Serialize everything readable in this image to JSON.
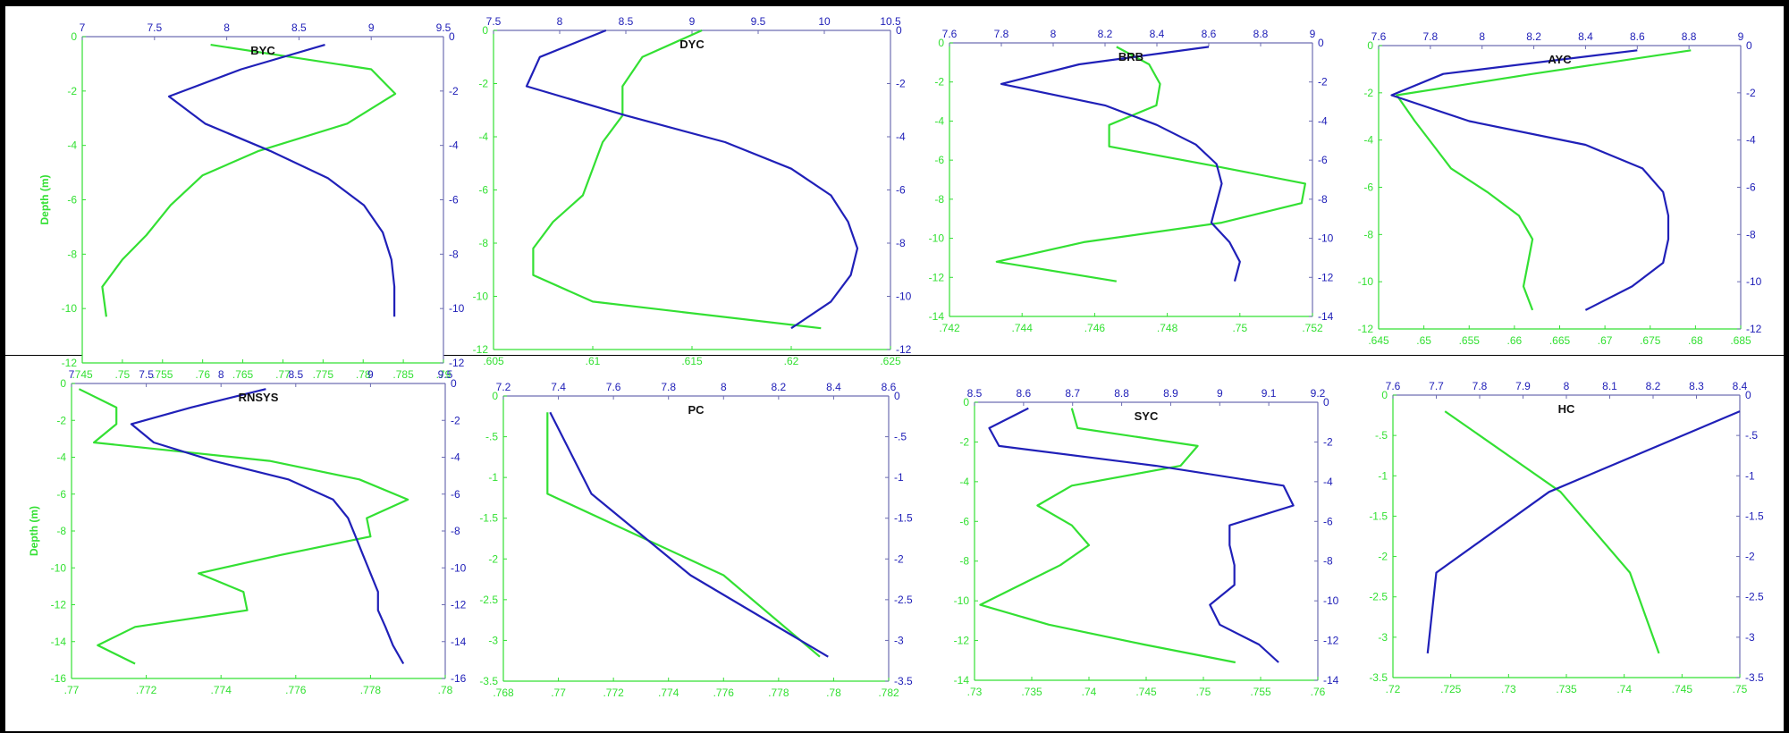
{
  "colors": {
    "green": "#33e033",
    "blue": "#2020b8",
    "axis_blue": "#6d6db2"
  },
  "chart_data": [
    {
      "type": "line",
      "title": "BYC",
      "ylabel": "Depth (m)",
      "ylim": [
        -12,
        0
      ],
      "yticks": [
        -12,
        -10,
        -8,
        -6,
        -4,
        -2,
        0
      ],
      "green_axis": {
        "lim": [
          0.745,
          0.79
        ],
        "ticks": [
          0.745,
          0.75,
          0.755,
          0.76,
          0.765,
          0.77,
          0.775,
          0.78,
          0.785,
          0.79
        ]
      },
      "blue_axis": {
        "lim": [
          7,
          9.5
        ],
        "ticks": [
          7,
          7.5,
          8,
          8.5,
          9,
          9.5
        ]
      },
      "series": [
        {
          "color": "green",
          "points": [
            [
              0.761,
              -0.3
            ],
            [
              0.781,
              -1.2
            ],
            [
              0.784,
              -2.1
            ],
            [
              0.778,
              -3.2
            ],
            [
              0.767,
              -4.2
            ],
            [
              0.76,
              -5.1
            ],
            [
              0.756,
              -6.2
            ],
            [
              0.753,
              -7.3
            ],
            [
              0.75,
              -8.2
            ],
            [
              0.7475,
              -9.2
            ],
            [
              0.748,
              -10.3
            ]
          ]
        },
        {
          "color": "blue",
          "points": [
            [
              8.68,
              -0.3
            ],
            [
              8.1,
              -1.2
            ],
            [
              7.6,
              -2.2
            ],
            [
              7.85,
              -3.2
            ],
            [
              8.3,
              -4.2
            ],
            [
              8.7,
              -5.2
            ],
            [
              8.95,
              -6.2
            ],
            [
              9.08,
              -7.2
            ],
            [
              9.14,
              -8.2
            ],
            [
              9.16,
              -9.2
            ],
            [
              9.16,
              -10.3
            ]
          ]
        }
      ]
    },
    {
      "type": "line",
      "title": "DYC",
      "ylabel": "",
      "ylim": [
        -12,
        0
      ],
      "yticks": [
        -12,
        -10,
        -8,
        -6,
        -4,
        -2,
        0
      ],
      "green_axis": {
        "lim": [
          0.605,
          0.625
        ],
        "ticks": [
          0.605,
          0.61,
          0.615,
          0.62,
          0.625
        ]
      },
      "blue_axis": {
        "lim": [
          7.5,
          10.5
        ],
        "ticks": [
          7.5,
          8,
          8.5,
          9,
          9.5,
          10,
          10.5
        ]
      },
      "series": [
        {
          "color": "green",
          "points": [
            [
              0.6155,
              0.0
            ],
            [
              0.6125,
              -1.0
            ],
            [
              0.6115,
              -2.1
            ],
            [
              0.6115,
              -3.2
            ],
            [
              0.6105,
              -4.2
            ],
            [
              0.61,
              -5.2
            ],
            [
              0.6095,
              -6.2
            ],
            [
              0.608,
              -7.2
            ],
            [
              0.607,
              -8.2
            ],
            [
              0.607,
              -9.2
            ],
            [
              0.61,
              -10.2
            ],
            [
              0.6215,
              -11.2
            ]
          ]
        },
        {
          "color": "blue",
          "points": [
            [
              8.35,
              0.0
            ],
            [
              7.85,
              -1.0
            ],
            [
              7.75,
              -2.1
            ],
            [
              8.5,
              -3.2
            ],
            [
              9.25,
              -4.2
            ],
            [
              9.75,
              -5.2
            ],
            [
              10.05,
              -6.2
            ],
            [
              10.18,
              -7.2
            ],
            [
              10.25,
              -8.2
            ],
            [
              10.2,
              -9.2
            ],
            [
              10.05,
              -10.2
            ],
            [
              9.75,
              -11.2
            ]
          ]
        }
      ]
    },
    {
      "type": "line",
      "title": "BRB",
      "ylabel": "",
      "ylim": [
        -14,
        0
      ],
      "yticks": [
        -14,
        -12,
        -10,
        -8,
        -6,
        -4,
        -2,
        0
      ],
      "green_axis": {
        "lim": [
          0.742,
          0.752
        ],
        "ticks": [
          0.742,
          0.744,
          0.746,
          0.748,
          0.75,
          0.752
        ]
      },
      "blue_axis": {
        "lim": [
          7.6,
          9
        ],
        "ticks": [
          7.6,
          7.8,
          8,
          8.2,
          8.4,
          8.6,
          8.8,
          9
        ]
      },
      "series": [
        {
          "color": "green",
          "points": [
            [
              0.7466,
              -0.2
            ],
            [
              0.7475,
              -1.1
            ],
            [
              0.7478,
              -2.1
            ],
            [
              0.7477,
              -3.2
            ],
            [
              0.7464,
              -4.2
            ],
            [
              0.7464,
              -5.3
            ],
            [
              0.7493,
              -6.3
            ],
            [
              0.7518,
              -7.2
            ],
            [
              0.7517,
              -8.2
            ],
            [
              0.7495,
              -9.2
            ],
            [
              0.7457,
              -10.2
            ],
            [
              0.7433,
              -11.2
            ],
            [
              0.7466,
              -12.2
            ]
          ]
        },
        {
          "color": "blue",
          "points": [
            [
              8.6,
              -0.2
            ],
            [
              8.1,
              -1.1
            ],
            [
              7.8,
              -2.1
            ],
            [
              8.2,
              -3.2
            ],
            [
              8.4,
              -4.2
            ],
            [
              8.55,
              -5.2
            ],
            [
              8.63,
              -6.2
            ],
            [
              8.65,
              -7.2
            ],
            [
              8.63,
              -8.2
            ],
            [
              8.61,
              -9.2
            ],
            [
              8.68,
              -10.2
            ],
            [
              8.72,
              -11.2
            ],
            [
              8.7,
              -12.2
            ]
          ]
        }
      ]
    },
    {
      "type": "line",
      "title": "AYC",
      "ylabel": "",
      "ylim": [
        -12,
        0
      ],
      "yticks": [
        -12,
        -10,
        -8,
        -6,
        -4,
        -2,
        0
      ],
      "green_axis": {
        "lim": [
          0.645,
          0.685
        ],
        "ticks": [
          0.645,
          0.65,
          0.655,
          0.66,
          0.665,
          0.67,
          0.675,
          0.68,
          0.685
        ]
      },
      "blue_axis": {
        "lim": [
          7.6,
          9
        ],
        "ticks": [
          7.6,
          7.8,
          8,
          8.2,
          8.4,
          8.6,
          8.8,
          9
        ]
      },
      "series": [
        {
          "color": "green",
          "points": [
            [
              0.6795,
              -0.2
            ],
            [
              0.662,
              -1.2
            ],
            [
              0.647,
              -2.1
            ],
            [
              0.649,
              -3.2
            ],
            [
              0.651,
              -4.2
            ],
            [
              0.653,
              -5.2
            ],
            [
              0.657,
              -6.2
            ],
            [
              0.6605,
              -7.2
            ],
            [
              0.662,
              -8.2
            ],
            [
              0.6615,
              -9.2
            ],
            [
              0.661,
              -10.2
            ],
            [
              0.662,
              -11.2
            ]
          ]
        },
        {
          "color": "blue",
          "points": [
            [
              8.6,
              -0.2
            ],
            [
              7.85,
              -1.2
            ],
            [
              7.65,
              -2.1
            ],
            [
              7.95,
              -3.2
            ],
            [
              8.4,
              -4.2
            ],
            [
              8.62,
              -5.2
            ],
            [
              8.7,
              -6.2
            ],
            [
              8.72,
              -7.2
            ],
            [
              8.72,
              -8.2
            ],
            [
              8.7,
              -9.2
            ],
            [
              8.58,
              -10.2
            ],
            [
              8.4,
              -11.2
            ]
          ]
        }
      ]
    },
    {
      "type": "line",
      "title": "RNSYS",
      "ylabel": "Depth (m)",
      "ylim": [
        -16,
        0
      ],
      "yticks": [
        -16,
        -14,
        -12,
        -10,
        -8,
        -6,
        -4,
        -2,
        0
      ],
      "green_axis": {
        "lim": [
          0.77,
          0.78
        ],
        "ticks": [
          0.77,
          0.772,
          0.774,
          0.776,
          0.778,
          0.78
        ]
      },
      "blue_axis": {
        "lim": [
          7,
          9.5
        ],
        "ticks": [
          7,
          7.5,
          8,
          8.5,
          9,
          9.5
        ]
      },
      "series": [
        {
          "color": "green",
          "points": [
            [
              0.7702,
              -0.3
            ],
            [
              0.7712,
              -1.3
            ],
            [
              0.7712,
              -2.2
            ],
            [
              0.7706,
              -3.2
            ],
            [
              0.7753,
              -4.2
            ],
            [
              0.7777,
              -5.2
            ],
            [
              0.779,
              -6.3
            ],
            [
              0.7779,
              -7.3
            ],
            [
              0.778,
              -8.3
            ],
            [
              0.7756,
              -9.3
            ],
            [
              0.7734,
              -10.3
            ],
            [
              0.7746,
              -11.3
            ],
            [
              0.7747,
              -12.3
            ],
            [
              0.7717,
              -13.2
            ],
            [
              0.7707,
              -14.2
            ],
            [
              0.7717,
              -15.2
            ]
          ]
        },
        {
          "color": "blue",
          "points": [
            [
              8.3,
              -0.3
            ],
            [
              7.8,
              -1.3
            ],
            [
              7.4,
              -2.2
            ],
            [
              7.55,
              -3.2
            ],
            [
              7.95,
              -4.2
            ],
            [
              8.45,
              -5.2
            ],
            [
              8.75,
              -6.3
            ],
            [
              8.85,
              -7.3
            ],
            [
              8.9,
              -8.3
            ],
            [
              8.95,
              -9.3
            ],
            [
              9.0,
              -10.3
            ],
            [
              9.05,
              -11.3
            ],
            [
              9.05,
              -12.3
            ],
            [
              9.1,
              -13.2
            ],
            [
              9.15,
              -14.2
            ],
            [
              9.22,
              -15.2
            ]
          ]
        }
      ]
    },
    {
      "type": "line",
      "title": "PC",
      "ylabel": "",
      "ylim": [
        -3.5,
        0
      ],
      "yticks": [
        -3.5,
        -3,
        -2.5,
        -2,
        -1.5,
        -1,
        -0.5,
        0
      ],
      "green_axis": {
        "lim": [
          0.768,
          0.782
        ],
        "ticks": [
          0.768,
          0.77,
          0.772,
          0.774,
          0.776,
          0.778,
          0.78,
          0.782
        ]
      },
      "blue_axis": {
        "lim": [
          7.2,
          8.6
        ],
        "ticks": [
          7.2,
          7.4,
          7.6,
          7.8,
          8,
          8.2,
          8.4,
          8.6
        ]
      },
      "series": [
        {
          "color": "green",
          "points": [
            [
              0.7696,
              -0.2
            ],
            [
              0.7696,
              -1.2
            ],
            [
              0.776,
              -2.2
            ],
            [
              0.7795,
              -3.2
            ]
          ]
        },
        {
          "color": "blue",
          "points": [
            [
              7.37,
              -0.2
            ],
            [
              7.52,
              -1.2
            ],
            [
              7.88,
              -2.2
            ],
            [
              8.38,
              -3.2
            ]
          ]
        }
      ]
    },
    {
      "type": "line",
      "title": "SYC",
      "ylabel": "",
      "ylim": [
        -14,
        0
      ],
      "yticks": [
        -14,
        -12,
        -10,
        -8,
        -6,
        -4,
        -2,
        0
      ],
      "green_axis": {
        "lim": [
          0.73,
          0.76
        ],
        "ticks": [
          0.73,
          0.735,
          0.74,
          0.745,
          0.75,
          0.755,
          0.76
        ]
      },
      "blue_axis": {
        "lim": [
          8.5,
          9.2
        ],
        "ticks": [
          8.5,
          8.6,
          8.7,
          8.8,
          8.9,
          9,
          9.1,
          9.2
        ]
      },
      "series": [
        {
          "color": "green",
          "points": [
            [
              0.7385,
              -0.3
            ],
            [
              0.739,
              -1.3
            ],
            [
              0.7495,
              -2.2
            ],
            [
              0.748,
              -3.2
            ],
            [
              0.7385,
              -4.2
            ],
            [
              0.7355,
              -5.2
            ],
            [
              0.7385,
              -6.2
            ],
            [
              0.74,
              -7.2
            ],
            [
              0.7375,
              -8.2
            ],
            [
              0.734,
              -9.2
            ],
            [
              0.7305,
              -10.2
            ],
            [
              0.7365,
              -11.2
            ],
            [
              0.7448,
              -12.2
            ],
            [
              0.7528,
              -13.1
            ]
          ]
        },
        {
          "color": "blue",
          "points": [
            [
              8.61,
              -0.3
            ],
            [
              8.53,
              -1.3
            ],
            [
              8.55,
              -2.2
            ],
            [
              8.87,
              -3.2
            ],
            [
              9.13,
              -4.2
            ],
            [
              9.15,
              -5.2
            ],
            [
              9.02,
              -6.2
            ],
            [
              9.02,
              -7.2
            ],
            [
              9.03,
              -8.2
            ],
            [
              9.03,
              -9.2
            ],
            [
              8.98,
              -10.2
            ],
            [
              9.0,
              -11.2
            ],
            [
              9.08,
              -12.2
            ],
            [
              9.12,
              -13.1
            ]
          ]
        }
      ]
    },
    {
      "type": "line",
      "title": "HC",
      "ylabel": "",
      "ylim": [
        -3.5,
        0
      ],
      "yticks": [
        -3.5,
        -3,
        -2.5,
        -2,
        -1.5,
        -1,
        -0.5,
        0
      ],
      "green_axis": {
        "lim": [
          0.72,
          0.75
        ],
        "ticks": [
          0.72,
          0.725,
          0.73,
          0.735,
          0.74,
          0.745,
          0.75
        ]
      },
      "blue_axis": {
        "lim": [
          7.6,
          8.4
        ],
        "ticks": [
          7.6,
          7.7,
          7.8,
          7.9,
          8,
          8.1,
          8.2,
          8.3,
          8.4
        ]
      },
      "series": [
        {
          "color": "green",
          "points": [
            [
              0.7245,
              -0.2
            ],
            [
              0.7345,
              -1.2
            ],
            [
              0.7405,
              -2.2
            ],
            [
              0.743,
              -3.2
            ]
          ]
        },
        {
          "color": "blue",
          "points": [
            [
              8.4,
              -0.2
            ],
            [
              7.96,
              -1.2
            ],
            [
              7.7,
              -2.2
            ],
            [
              7.68,
              -3.2
            ]
          ]
        }
      ]
    }
  ]
}
